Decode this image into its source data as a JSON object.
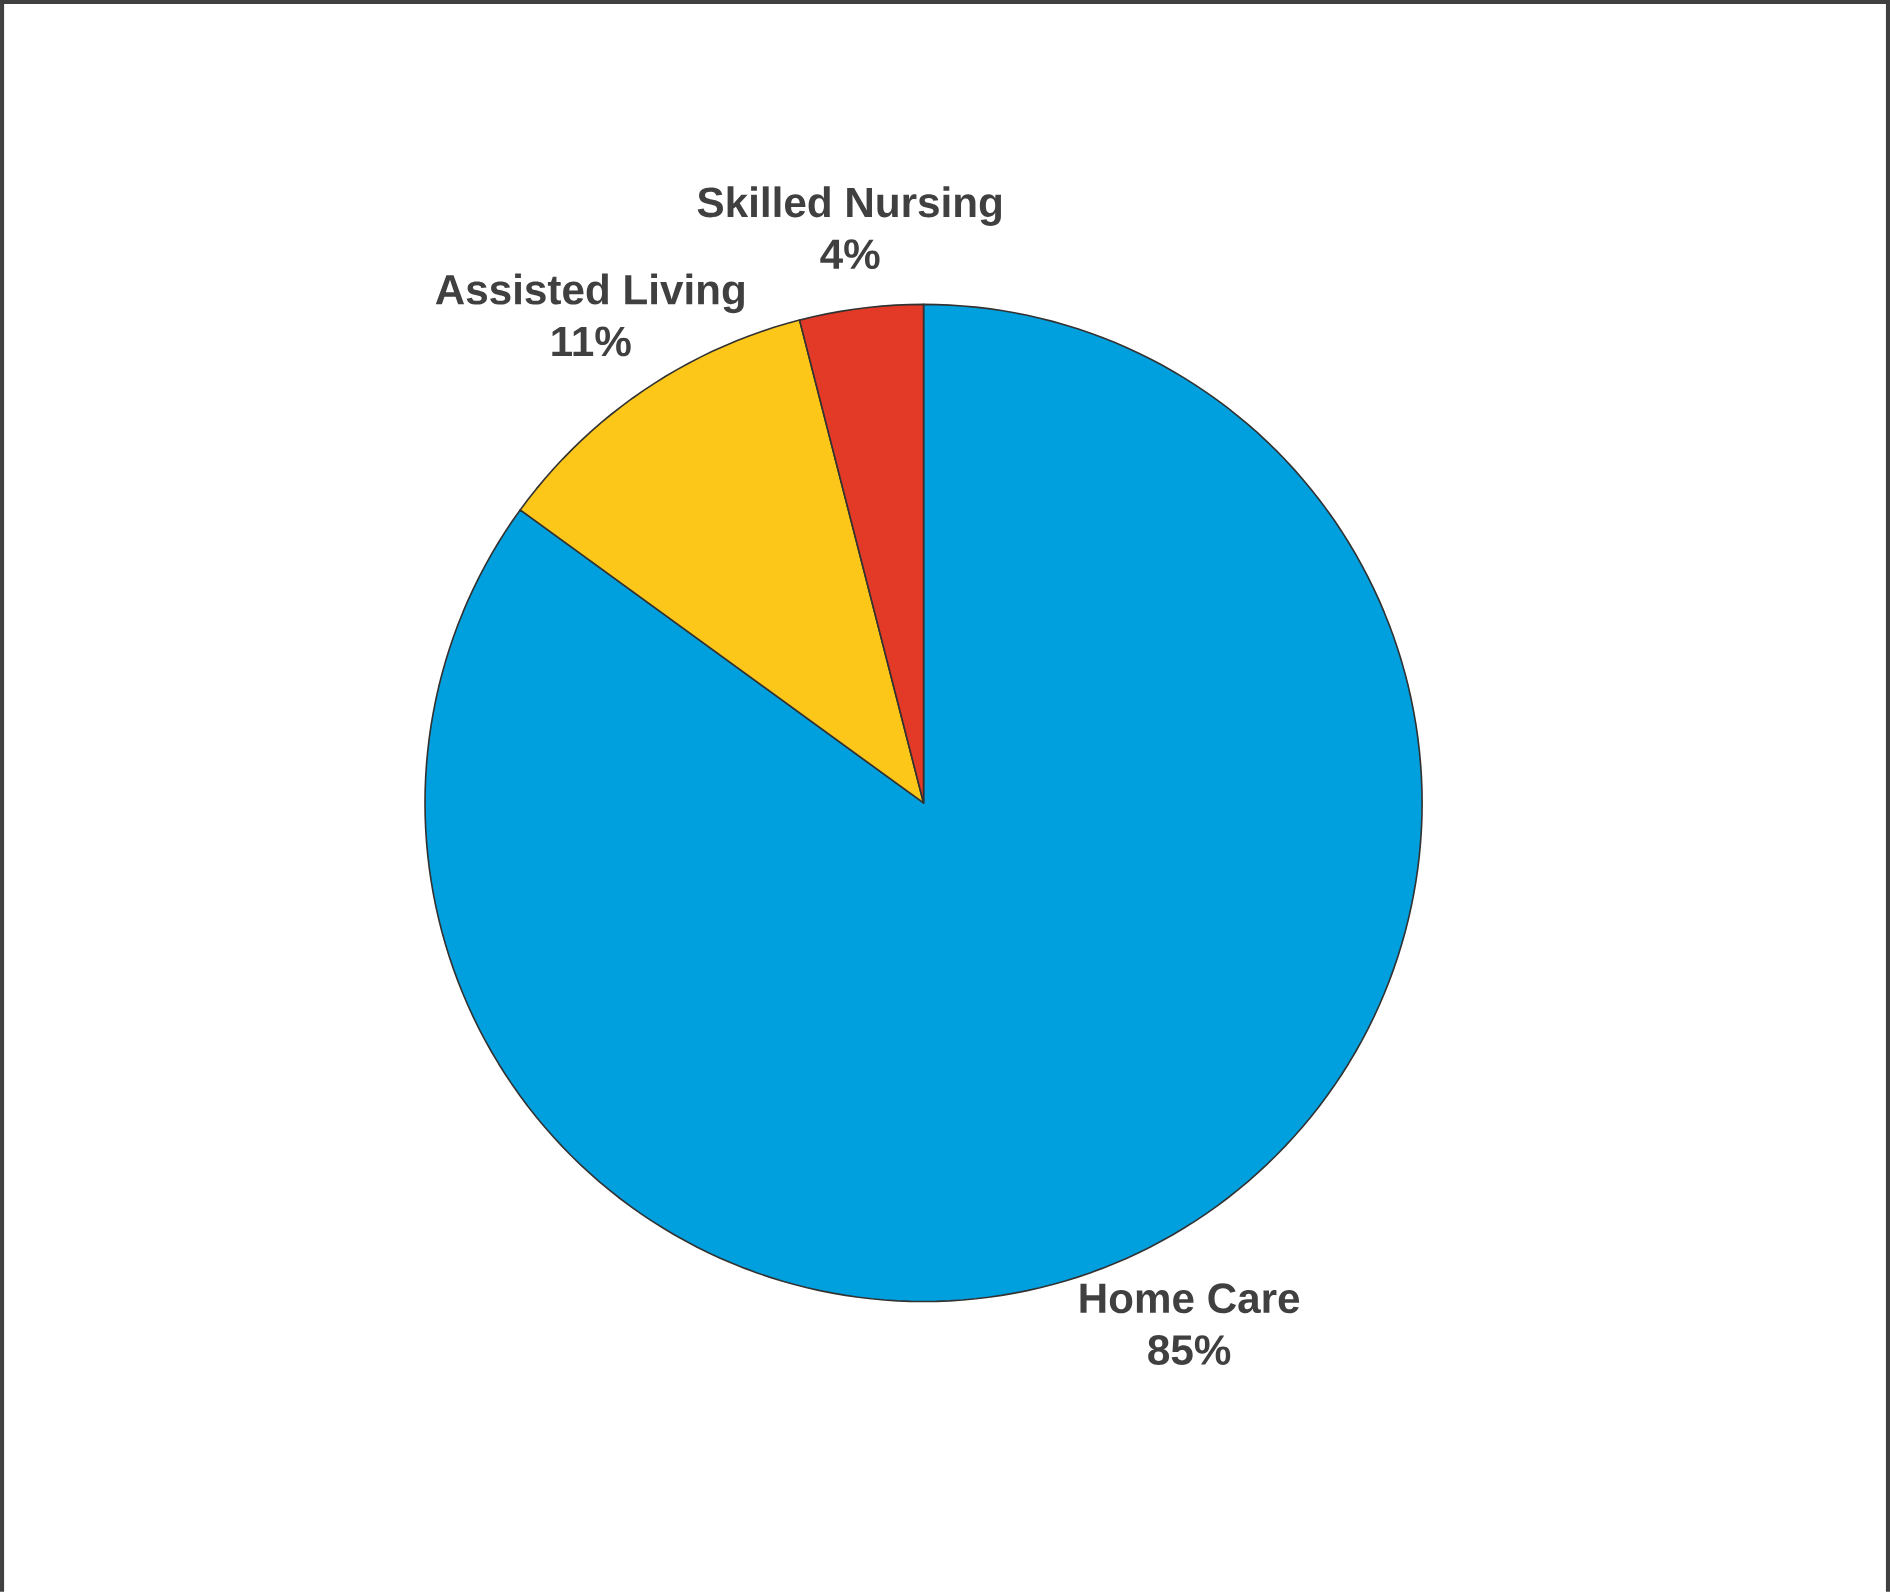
{
  "chart_data": {
    "type": "pie",
    "categories": [
      "Home Care",
      "Assisted Living",
      "Skilled Nursing"
    ],
    "values": [
      85,
      11,
      4
    ],
    "value_labels": [
      "85%",
      "11%",
      "4%"
    ],
    "colors": [
      "#00a0df",
      "#fcc719",
      "#e23a26"
    ]
  }
}
